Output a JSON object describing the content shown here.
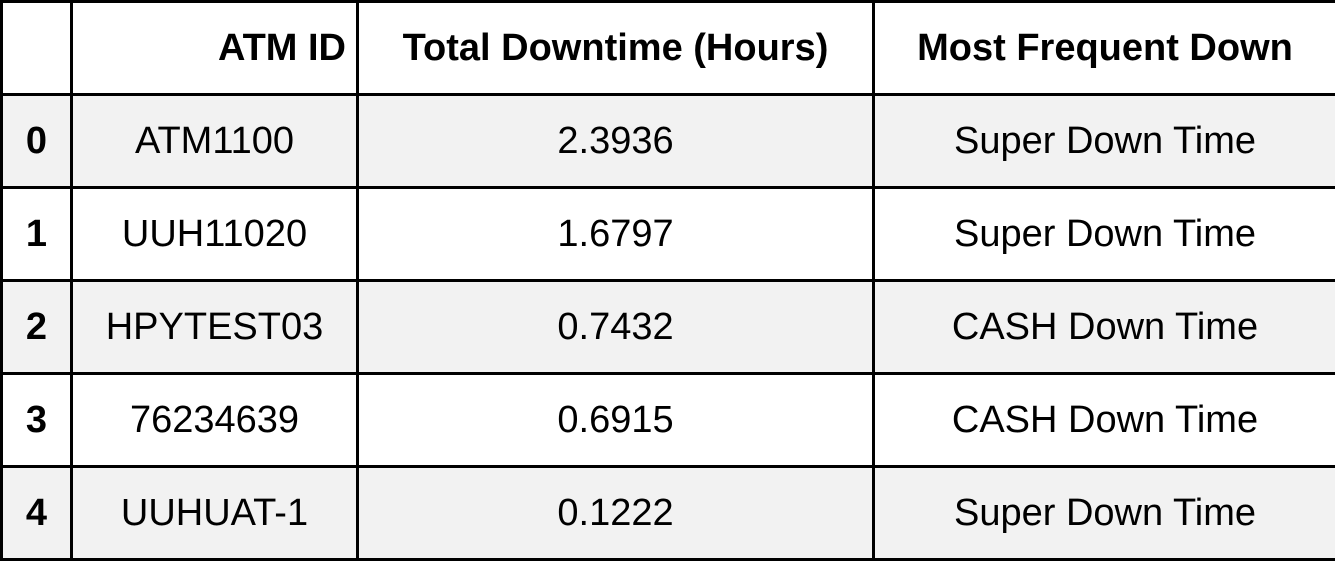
{
  "table": {
    "columns": {
      "index": "",
      "atm_id": "ATM ID",
      "total_downtime": "Total Downtime (Hours)",
      "most_frequent_down": "Most Frequent Down"
    },
    "rows": [
      {
        "index": "0",
        "atm_id": "ATM1100",
        "total_downtime": "2.3936",
        "most_frequent_down": "Super Down Time"
      },
      {
        "index": "1",
        "atm_id": "UUH11020",
        "total_downtime": "1.6797",
        "most_frequent_down": "Super Down Time"
      },
      {
        "index": "2",
        "atm_id": "HPYTEST03",
        "total_downtime": "0.7432",
        "most_frequent_down": "CASH Down Time"
      },
      {
        "index": "3",
        "atm_id": "76234639",
        "total_downtime": "0.6915",
        "most_frequent_down": "CASH Down Time"
      },
      {
        "index": "4",
        "atm_id": "UUHUAT-1",
        "total_downtime": "0.1222",
        "most_frequent_down": "Super Down Time"
      }
    ],
    "colors": {
      "border": "#000000",
      "stripe": "#f2f2f2",
      "background": "#ffffff"
    }
  }
}
